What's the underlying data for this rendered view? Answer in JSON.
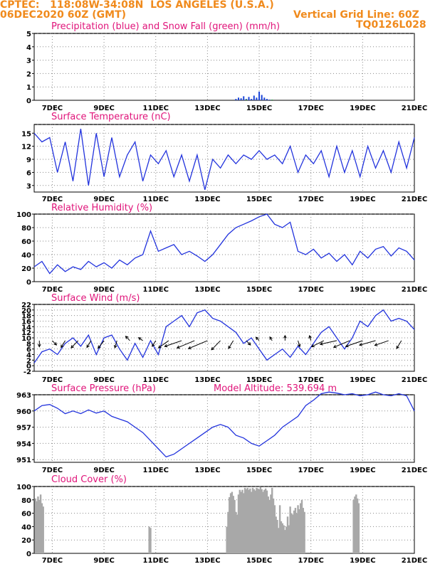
{
  "header": {
    "line1": "CPTEC:   118:08W-34:08N  LOS ANGELES (U.S.A.)",
    "line2": "06DEC2020 60Z (GMT)",
    "grid_note": "Vertical Grid Line: 60Z",
    "code": "TQ0126L028"
  },
  "colors": {
    "header": "#f08a1c",
    "title": "#e0147a",
    "line": "#2233dd",
    "precip": "#1a44d8",
    "snow": "#1a9a3a",
    "cloud": "#a8a8a8",
    "grid": "#8a8a8a"
  },
  "chart_data": [
    {
      "type": "bar",
      "title": "Precipitation (blue) and Snow Fall (green) (mm/h)",
      "x_tick_labels": [
        "7DEC",
        "9DEC",
        "11DEC",
        "13DEC",
        "15DEC",
        "17DEC",
        "19DEC",
        "21DEC"
      ],
      "x_range_days": [
        6.3,
        21
      ],
      "yticks": [
        0,
        1,
        2,
        3,
        4,
        5
      ],
      "ylim": [
        0,
        5
      ],
      "grid": true,
      "series": [
        {
          "name": "Precipitation",
          "x_days": [
            14.1,
            14.2,
            14.3,
            14.4,
            14.5,
            14.6,
            14.7,
            14.8,
            14.9,
            15.0,
            15.1,
            15.2,
            15.3,
            15.4
          ],
          "values": [
            0.1,
            0.2,
            0.15,
            0.3,
            0.1,
            0.25,
            0.1,
            0.35,
            0.2,
            0.65,
            0.4,
            0.2,
            0.1,
            0.05
          ]
        },
        {
          "name": "Snow Fall",
          "x_days": [
            14.5,
            15.5
          ],
          "values": [
            0.05,
            0.05
          ]
        }
      ]
    },
    {
      "type": "line",
      "title": "Surface Temperature (nC)",
      "x_tick_labels": [
        "7DEC",
        "9DEC",
        "11DEC",
        "13DEC",
        "15DEC",
        "17DEC",
        "19DEC",
        "21DEC"
      ],
      "x_range_days": [
        6.3,
        21
      ],
      "yticks": [
        3,
        6,
        9,
        12,
        15
      ],
      "ylim": [
        1.5,
        17
      ],
      "grid": true,
      "x_days": [
        6.3,
        6.6,
        6.9,
        7.2,
        7.5,
        7.8,
        8.1,
        8.4,
        8.7,
        9.0,
        9.3,
        9.6,
        9.9,
        10.2,
        10.5,
        10.8,
        11.1,
        11.4,
        11.7,
        12.0,
        12.3,
        12.6,
        12.9,
        13.2,
        13.5,
        13.8,
        14.1,
        14.4,
        14.7,
        15.0,
        15.3,
        15.6,
        15.9,
        16.2,
        16.5,
        16.8,
        17.1,
        17.4,
        17.7,
        18.0,
        18.3,
        18.6,
        18.9,
        19.2,
        19.5,
        19.8,
        20.1,
        20.4,
        20.7,
        21.0
      ],
      "values": [
        15,
        13,
        14,
        6,
        13,
        4,
        16,
        3,
        15,
        5,
        14,
        5,
        10,
        13,
        4,
        10,
        8,
        11,
        5,
        10,
        4,
        10,
        2,
        9,
        7,
        10,
        8,
        10,
        9,
        11,
        9,
        10,
        8,
        12,
        6,
        10,
        8,
        11,
        5,
        12,
        6,
        11,
        5,
        12,
        7,
        11,
        6,
        13,
        7,
        14
      ]
    },
    {
      "type": "line",
      "title": "Relative Humidity (%)",
      "x_tick_labels": [
        "7DEC",
        "9DEC",
        "11DEC",
        "13DEC",
        "15DEC",
        "17DEC",
        "19DEC",
        "21DEC"
      ],
      "x_range_days": [
        6.3,
        21
      ],
      "yticks": [
        0,
        20,
        40,
        60,
        80,
        100
      ],
      "ylim": [
        0,
        100
      ],
      "grid": true,
      "x_days": [
        6.3,
        6.6,
        6.9,
        7.2,
        7.5,
        7.8,
        8.1,
        8.4,
        8.7,
        9.0,
        9.3,
        9.6,
        9.9,
        10.2,
        10.5,
        10.8,
        11.1,
        11.4,
        11.7,
        12.0,
        12.3,
        12.6,
        12.9,
        13.2,
        13.5,
        13.8,
        14.1,
        14.4,
        14.7,
        15.0,
        15.3,
        15.6,
        15.9,
        16.2,
        16.5,
        16.8,
        17.1,
        17.4,
        17.7,
        18.0,
        18.3,
        18.6,
        18.9,
        19.2,
        19.5,
        19.8,
        20.1,
        20.4,
        20.7,
        21.0
      ],
      "values": [
        22,
        30,
        12,
        25,
        15,
        22,
        18,
        30,
        22,
        28,
        20,
        32,
        25,
        35,
        40,
        75,
        45,
        50,
        55,
        40,
        45,
        38,
        30,
        40,
        55,
        70,
        80,
        85,
        90,
        96,
        100,
        85,
        80,
        88,
        45,
        40,
        48,
        35,
        42,
        30,
        40,
        25,
        45,
        35,
        48,
        52,
        38,
        50,
        45,
        32
      ]
    },
    {
      "type": "line",
      "title": "Surface Wind (m/s)",
      "x_tick_labels": [
        "7DEC",
        "9DEC",
        "11DEC",
        "13DEC",
        "15DEC",
        "17DEC",
        "19DEC",
        "21DEC"
      ],
      "x_range_days": [
        6.3,
        21
      ],
      "yticks": [
        -2,
        0,
        2,
        4,
        6,
        8,
        10,
        12,
        14,
        16,
        18,
        20,
        22
      ],
      "ylim": [
        -2,
        22
      ],
      "grid": true,
      "x_days": [
        6.3,
        6.6,
        6.9,
        7.2,
        7.5,
        7.8,
        8.1,
        8.4,
        8.7,
        9.0,
        9.3,
        9.6,
        9.9,
        10.2,
        10.5,
        10.8,
        11.1,
        11.4,
        11.7,
        12.0,
        12.3,
        12.6,
        12.9,
        13.2,
        13.5,
        13.8,
        14.1,
        14.4,
        14.7,
        15.0,
        15.3,
        15.6,
        15.9,
        16.2,
        16.5,
        16.8,
        17.1,
        17.4,
        17.7,
        18.0,
        18.3,
        18.6,
        18.9,
        19.2,
        19.5,
        19.8,
        20.1,
        20.4,
        20.7,
        21.0
      ],
      "values": [
        1,
        5,
        6,
        4,
        8,
        10,
        7,
        11,
        4,
        10,
        11,
        6,
        2,
        8,
        3,
        9,
        4,
        14,
        16,
        18,
        14,
        19,
        20,
        17,
        16,
        14,
        12,
        8,
        10,
        6,
        2,
        4,
        6,
        3,
        7,
        4,
        8,
        12,
        14,
        10,
        6,
        10,
        16,
        14,
        18,
        20,
        16,
        17,
        16,
        13
      ],
      "wind_barb_days": [
        6.5,
        7.0,
        7.5,
        8.0,
        8.5,
        9.0,
        9.5,
        10.0,
        10.5,
        11.0,
        11.5,
        12.0,
        12.5,
        13.0,
        13.5,
        14.0,
        14.5,
        15.0,
        15.5,
        16.0,
        16.5,
        17.0,
        17.5,
        18.0,
        18.5,
        19.0,
        19.5,
        20.0,
        20.5
      ],
      "wind_barb_speed": [
        4,
        3,
        5,
        6,
        5,
        6,
        5,
        3,
        2,
        4,
        7,
        9,
        10,
        11,
        8,
        6,
        3,
        2,
        2,
        3,
        4,
        3,
        7,
        8,
        9,
        9,
        8,
        7,
        6
      ],
      "wind_barb_dir_deg": [
        270,
        300,
        250,
        240,
        250,
        245,
        260,
        120,
        130,
        250,
        230,
        210,
        215,
        215,
        240,
        250,
        300,
        120,
        110,
        90,
        280,
        100,
        220,
        200,
        215,
        210,
        205,
        210,
        250
      ]
    },
    {
      "type": "line",
      "title": "Surface Pressure (hPa)",
      "annotation": "Model Altitude: 539.694 m",
      "x_tick_labels": [
        "7DEC",
        "9DEC",
        "11DEC",
        "13DEC",
        "15DEC",
        "17DEC",
        "19DEC",
        "21DEC"
      ],
      "x_range_days": [
        6.3,
        21
      ],
      "yticks": [
        951,
        954,
        957,
        960,
        963
      ],
      "ylim": [
        950.5,
        963
      ],
      "grid": true,
      "x_days": [
        6.3,
        6.6,
        6.9,
        7.2,
        7.5,
        7.8,
        8.1,
        8.4,
        8.7,
        9.0,
        9.3,
        9.6,
        9.9,
        10.2,
        10.5,
        10.8,
        11.1,
        11.4,
        11.7,
        12.0,
        12.3,
        12.6,
        12.9,
        13.2,
        13.5,
        13.8,
        14.1,
        14.4,
        14.7,
        15.0,
        15.3,
        15.6,
        15.9,
        16.2,
        16.5,
        16.8,
        17.1,
        17.4,
        17.7,
        18.0,
        18.3,
        18.6,
        18.9,
        19.2,
        19.5,
        19.8,
        20.1,
        20.4,
        20.7,
        21.0
      ],
      "values": [
        960,
        961,
        961.2,
        960.5,
        959.5,
        960,
        959.5,
        960.2,
        959.6,
        960,
        959,
        958.5,
        958,
        957,
        956,
        954.5,
        953,
        951.5,
        952,
        953,
        954,
        955,
        956,
        957,
        957.5,
        957,
        955.5,
        955,
        954,
        953.5,
        954.5,
        955.5,
        957,
        958,
        959,
        961,
        962,
        963.2,
        963.5,
        963.3,
        963,
        963.2,
        962.8,
        963,
        963.5,
        963,
        962.8,
        963.2,
        962.8,
        960
      ]
    },
    {
      "type": "bar",
      "title": "Cloud Cover (%)",
      "x_tick_labels": [
        "7DEC",
        "9DEC",
        "11DEC",
        "13DEC",
        "15DEC",
        "17DEC",
        "19DEC",
        "21DEC"
      ],
      "x_range_days": [
        6.3,
        21
      ],
      "yticks": [
        0,
        20,
        40,
        60,
        80,
        100
      ],
      "ylim": [
        0,
        100
      ],
      "grid": true,
      "x_days": [
        6.35,
        6.4,
        6.45,
        6.5,
        6.55,
        6.6,
        6.65,
        10.75,
        10.8,
        13.75,
        13.8,
        13.85,
        13.9,
        13.95,
        14.0,
        14.05,
        14.1,
        14.15,
        14.2,
        14.25,
        14.3,
        14.35,
        14.4,
        14.45,
        14.5,
        14.55,
        14.6,
        14.65,
        14.7,
        14.75,
        14.8,
        14.85,
        14.9,
        14.95,
        15.0,
        15.05,
        15.1,
        15.15,
        15.2,
        15.25,
        15.3,
        15.35,
        15.4,
        15.45,
        15.5,
        15.55,
        15.6,
        15.65,
        15.7,
        15.75,
        15.8,
        15.85,
        15.9,
        15.95,
        16.0,
        16.05,
        16.1,
        16.15,
        16.2,
        16.25,
        16.3,
        16.35,
        16.4,
        16.45,
        16.5,
        16.55,
        16.6,
        16.65,
        16.7,
        16.75,
        18.65,
        18.7,
        18.75,
        18.8,
        18.85
      ],
      "values": [
        82,
        78,
        85,
        80,
        88,
        75,
        70,
        40,
        38,
        40,
        62,
        84,
        90,
        92,
        86,
        80,
        62,
        58,
        88,
        95,
        92,
        95,
        90,
        98,
        96,
        98,
        95,
        97,
        92,
        98,
        96,
        94,
        98,
        97,
        95,
        99,
        96,
        92,
        95,
        97,
        94,
        85,
        80,
        88,
        98,
        82,
        72,
        55,
        50,
        38,
        72,
        48,
        45,
        42,
        35,
        40,
        55,
        42,
        70,
        60,
        58,
        64,
        68,
        60,
        72,
        66,
        75,
        80,
        68,
        62,
        80,
        85,
        88,
        82,
        75
      ]
    }
  ]
}
